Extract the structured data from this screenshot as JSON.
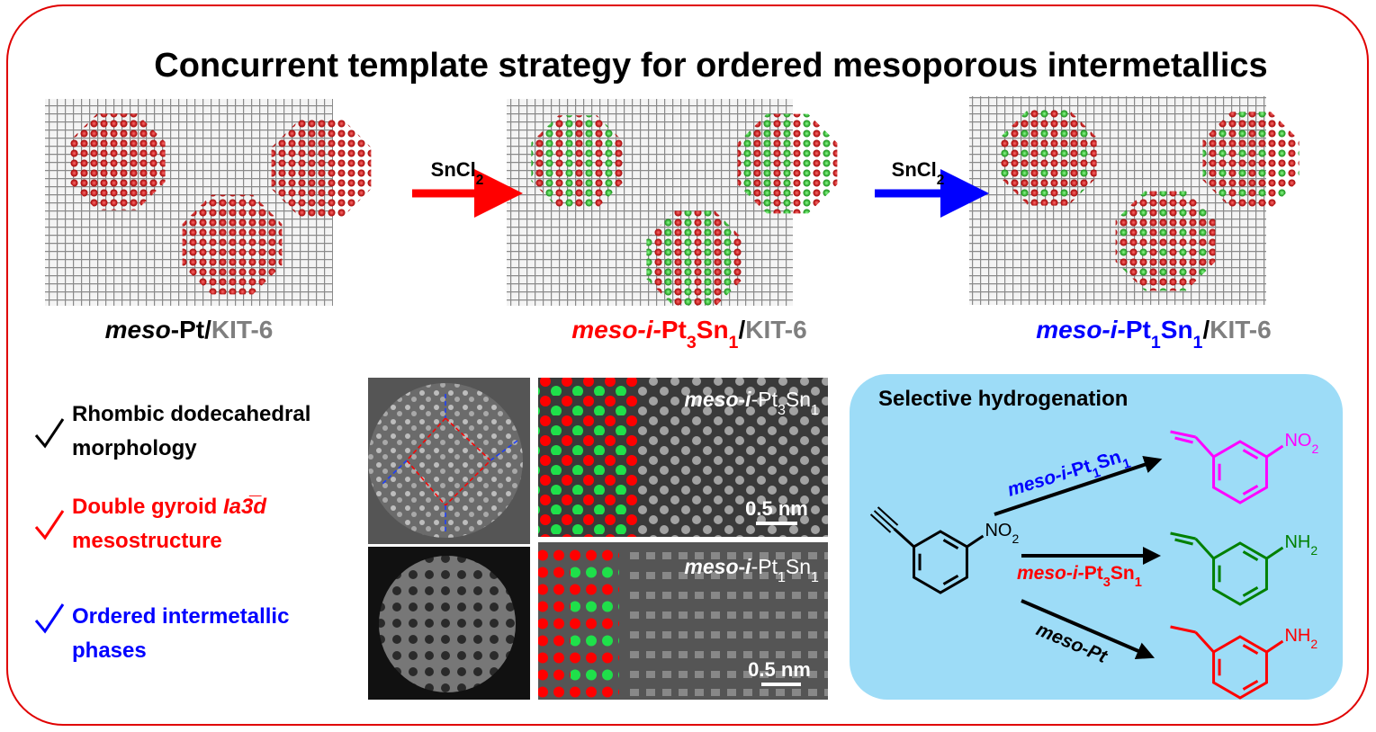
{
  "title": "Concurrent template strategy for ordered mesoporous intermetallics",
  "synthesis": {
    "steps": [
      {
        "label": [
          "meso",
          "-Pt/",
          "KIT-6"
        ]
      },
      {
        "label": [
          "meso-i-",
          "Pt",
          "3",
          "Sn",
          "1",
          "/",
          "KIT-6"
        ]
      },
      {
        "label": [
          "meso-i-",
          "Pt",
          "1",
          "Sn",
          "1",
          "/",
          "KIT-6"
        ]
      }
    ],
    "reagents": [
      [
        "SnCl",
        "2"
      ],
      [
        "SnCl",
        "2"
      ]
    ]
  },
  "features": [
    [
      "Rhombic dodecahedral",
      "morphology"
    ],
    [
      "Double gyroid ",
      "Ia3̅d",
      "mesostructure"
    ],
    [
      "Ordered intermetallic",
      "phases"
    ]
  ],
  "micrographs": [
    {
      "label": [
        "meso",
        "-",
        "i",
        "-Pt",
        "3",
        "Sn",
        "1"
      ],
      "scale": "0.5 nm"
    },
    {
      "label": [
        "meso",
        "-",
        "i",
        "-Pt",
        "1",
        "Sn",
        "1"
      ],
      "scale": "0.5 nm"
    }
  ],
  "reaction": {
    "title": "Selective hydrogenation",
    "substituents": [
      [
        "NO",
        "2"
      ],
      [
        "NO",
        "2"
      ],
      [
        "NH",
        "2"
      ],
      [
        "NH",
        "2"
      ]
    ],
    "routes": [
      {
        "catalyst": [
          "meso-i-",
          "Pt",
          "1",
          "Sn",
          "1"
        ]
      },
      {
        "catalyst": [
          "meso-i-",
          "Pt",
          "3",
          "Sn",
          "1"
        ]
      },
      {
        "catalyst": [
          "meso-Pt"
        ]
      }
    ]
  }
}
